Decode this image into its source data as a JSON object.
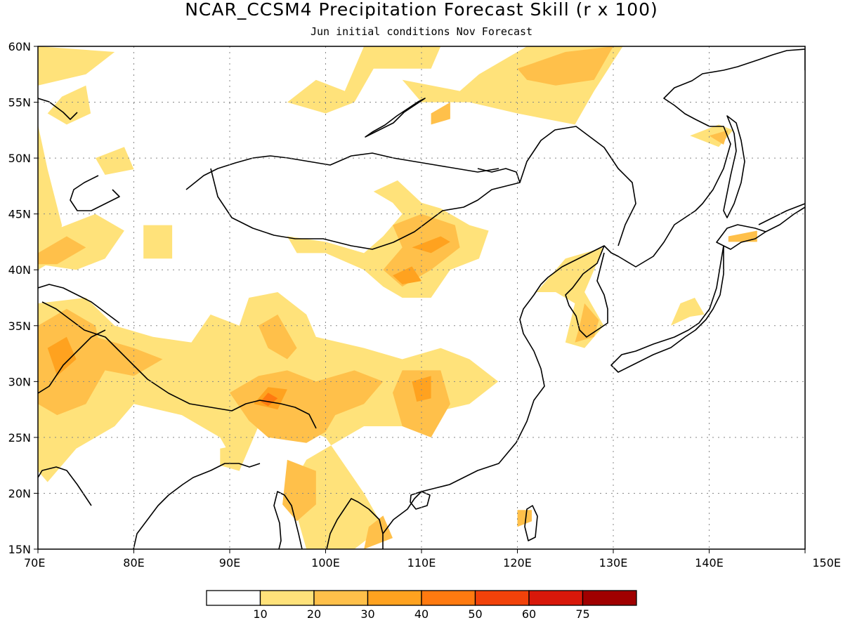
{
  "title": "NCAR_CCSM4 Precipitation Forecast Skill (r x 100)",
  "subtitle": "Jun initial conditions  Nov Forecast",
  "map": {
    "lon_range": [
      70,
      150
    ],
    "lat_range": [
      15,
      60
    ],
    "lon_ticks": [
      "70E",
      "80E",
      "90E",
      "100E",
      "110E",
      "120E",
      "130E",
      "140E",
      "150E"
    ],
    "lat_ticks": [
      "15N",
      "20N",
      "25N",
      "30N",
      "35N",
      "40N",
      "45N",
      "50N",
      "55N",
      "60N"
    ],
    "grid": "dotted",
    "coastline_color": "#000000"
  },
  "colorbar": {
    "colors": [
      "#ffffff",
      "#ffe27a",
      "#ffc04a",
      "#ffa21f",
      "#ff7a10",
      "#f2420a",
      "#d8180a",
      "#a00000"
    ],
    "labels": [
      "10",
      "20",
      "30",
      "40",
      "50",
      "60",
      "75"
    ]
  },
  "skill_regions": [
    {
      "level": 1,
      "lonlat": [
        [
          70,
          56.5
        ],
        [
          75,
          57.5
        ],
        [
          78,
          59.5
        ],
        [
          70,
          60
        ]
      ]
    },
    {
      "level": 1,
      "lonlat": [
        [
          72.5,
          55.5
        ],
        [
          75,
          56.5
        ],
        [
          75.5,
          54
        ],
        [
          73,
          53
        ],
        [
          71,
          54
        ]
      ]
    },
    {
      "level": 1,
      "lonlat": [
        [
          76,
          50
        ],
        [
          79,
          51
        ],
        [
          80,
          49
        ],
        [
          77,
          48.5
        ]
      ]
    },
    {
      "level": 1,
      "lonlat": [
        [
          70,
          53
        ],
        [
          71,
          49
        ],
        [
          72.5,
          44
        ],
        [
          72,
          41
        ],
        [
          70,
          40
        ]
      ]
    },
    {
      "level": 1,
      "lonlat": [
        [
          70,
          43
        ],
        [
          73,
          44
        ],
        [
          76,
          45
        ],
        [
          79,
          43.5
        ],
        [
          77,
          41
        ],
        [
          74,
          40
        ],
        [
          70,
          40.5
        ]
      ]
    },
    {
      "level": 2,
      "lonlat": [
        [
          70,
          41.5
        ],
        [
          73,
          43
        ],
        [
          75,
          42
        ],
        [
          72,
          40.5
        ],
        [
          70,
          40.5
        ]
      ]
    },
    {
      "level": 1,
      "lonlat": [
        [
          81,
          44
        ],
        [
          84,
          44
        ],
        [
          84,
          41
        ],
        [
          81,
          41
        ]
      ]
    },
    {
      "level": 1,
      "lonlat": [
        [
          96,
          55
        ],
        [
          99,
          57
        ],
        [
          102,
          56
        ],
        [
          104,
          60
        ],
        [
          112,
          60
        ],
        [
          111,
          58
        ],
        [
          105,
          58
        ],
        [
          103,
          55
        ],
        [
          100,
          54
        ]
      ]
    },
    {
      "level": 1,
      "lonlat": [
        [
          108,
          57
        ],
        [
          114,
          56
        ],
        [
          116,
          57.5
        ],
        [
          121,
          60
        ],
        [
          131,
          60
        ],
        [
          128,
          56
        ],
        [
          126,
          53
        ],
        [
          120,
          54
        ],
        [
          115,
          55
        ],
        [
          110,
          55
        ]
      ]
    },
    {
      "level": 2,
      "lonlat": [
        [
          120,
          58
        ],
        [
          125,
          59.5
        ],
        [
          130,
          60
        ],
        [
          128,
          57
        ],
        [
          124,
          56.5
        ],
        [
          121,
          57
        ]
      ]
    },
    {
      "level": 2,
      "lonlat": [
        [
          111,
          54
        ],
        [
          113,
          55
        ],
        [
          113,
          53.5
        ],
        [
          111,
          53
        ]
      ]
    },
    {
      "level": 1,
      "lonlat": [
        [
          138,
          52
        ],
        [
          141,
          53
        ],
        [
          142.5,
          52.5
        ],
        [
          141,
          51
        ]
      ]
    },
    {
      "level": 2,
      "lonlat": [
        [
          140,
          52
        ],
        [
          142,
          52.5
        ],
        [
          141.5,
          51.2
        ]
      ]
    },
    {
      "level": 1,
      "lonlat": [
        [
          105,
          47
        ],
        [
          107.5,
          48
        ],
        [
          110,
          46
        ],
        [
          112,
          45.5
        ],
        [
          115,
          44
        ],
        [
          117,
          43.5
        ],
        [
          116,
          41
        ],
        [
          113,
          40
        ],
        [
          111,
          37.5
        ],
        [
          108,
          37.5
        ],
        [
          106,
          38.5
        ],
        [
          104,
          40
        ],
        [
          100,
          41.5
        ],
        [
          97,
          41.5
        ],
        [
          96,
          43
        ],
        [
          100,
          42.5
        ],
        [
          104,
          41.5
        ],
        [
          106,
          43
        ],
        [
          108,
          45
        ],
        [
          107,
          46
        ]
      ]
    },
    {
      "level": 2,
      "lonlat": [
        [
          107,
          44
        ],
        [
          110,
          45
        ],
        [
          113.5,
          44
        ],
        [
          114,
          42
        ],
        [
          111,
          40
        ],
        [
          108,
          38.5
        ],
        [
          106,
          40
        ],
        [
          108,
          42
        ]
      ]
    },
    {
      "level": 3,
      "lonlat": [
        [
          109,
          42
        ],
        [
          112,
          43
        ],
        [
          113,
          42.5
        ],
        [
          111,
          41.5
        ]
      ]
    },
    {
      "level": 3,
      "lonlat": [
        [
          107,
          39.5
        ],
        [
          109,
          40.3
        ],
        [
          110,
          39
        ],
        [
          108,
          38.7
        ]
      ]
    },
    {
      "level": 1,
      "lonlat": [
        [
          122,
          38
        ],
        [
          125,
          41
        ],
        [
          129,
          42
        ],
        [
          128,
          40
        ],
        [
          127,
          38
        ],
        [
          129,
          35
        ],
        [
          127,
          33
        ],
        [
          125,
          33.5
        ],
        [
          126,
          37
        ],
        [
          124,
          38
        ]
      ]
    },
    {
      "level": 2,
      "lonlat": [
        [
          126,
          33.5
        ],
        [
          128,
          34
        ],
        [
          128.5,
          35.5
        ],
        [
          127,
          37
        ],
        [
          126.5,
          35
        ]
      ]
    },
    {
      "level": 1,
      "lonlat": [
        [
          136,
          35
        ],
        [
          138,
          35.8
        ],
        [
          139.5,
          36
        ],
        [
          138.5,
          37.5
        ],
        [
          137,
          37
        ]
      ]
    },
    {
      "level": 2,
      "lonlat": [
        [
          142,
          43
        ],
        [
          145,
          43.5
        ],
        [
          145,
          42.5
        ],
        [
          142,
          42.5
        ]
      ]
    },
    {
      "level": 1,
      "lonlat": [
        [
          70,
          37
        ],
        [
          75,
          37.5
        ],
        [
          78,
          35
        ],
        [
          82,
          34
        ],
        [
          86,
          33.5
        ],
        [
          88,
          36
        ],
        [
          91,
          35
        ],
        [
          92,
          37.5
        ],
        [
          95,
          38
        ],
        [
          98,
          36
        ],
        [
          99,
          34
        ],
        [
          104,
          33
        ],
        [
          108,
          32
        ],
        [
          112,
          33
        ],
        [
          115,
          32
        ],
        [
          118,
          30
        ],
        [
          115,
          28
        ],
        [
          110,
          27
        ],
        [
          108,
          26
        ],
        [
          104,
          26
        ],
        [
          100,
          24
        ],
        [
          98,
          23
        ],
        [
          96,
          20
        ],
        [
          97,
          18
        ],
        [
          98,
          15
        ],
        [
          103,
          15
        ],
        [
          106,
          17
        ],
        [
          104,
          20
        ],
        [
          100,
          25
        ],
        [
          97,
          26
        ],
        [
          93,
          26
        ],
        [
          91,
          22
        ],
        [
          89,
          25
        ],
        [
          85,
          27
        ],
        [
          80,
          28
        ],
        [
          78,
          26
        ],
        [
          74,
          24
        ],
        [
          71,
          21
        ],
        [
          70,
          22
        ]
      ]
    },
    {
      "level": 2,
      "lonlat": [
        [
          70,
          35
        ],
        [
          73,
          36.5
        ],
        [
          76,
          35
        ],
        [
          77,
          31
        ],
        [
          75,
          28
        ],
        [
          72,
          27
        ],
        [
          70,
          28
        ]
      ]
    },
    {
      "level": 3,
      "lonlat": [
        [
          71,
          33
        ],
        [
          73,
          34
        ],
        [
          74,
          32
        ],
        [
          72,
          30.5
        ]
      ]
    },
    {
      "level": 2,
      "lonlat": [
        [
          76,
          34
        ],
        [
          80,
          33
        ],
        [
          83,
          32
        ],
        [
          80,
          30.5
        ],
        [
          77,
          31
        ]
      ]
    },
    {
      "level": 2,
      "lonlat": [
        [
          93,
          35
        ],
        [
          95,
          36
        ],
        [
          97,
          33
        ],
        [
          96,
          32
        ],
        [
          94,
          33
        ]
      ]
    },
    {
      "level": 2,
      "lonlat": [
        [
          90,
          29
        ],
        [
          93,
          30.5
        ],
        [
          96,
          31
        ],
        [
          99,
          30
        ],
        [
          103,
          31
        ],
        [
          106,
          30
        ],
        [
          104,
          28
        ],
        [
          101,
          27
        ],
        [
          100,
          25.5
        ],
        [
          98,
          24.5
        ],
        [
          94,
          25
        ],
        [
          92,
          26.5
        ]
      ]
    },
    {
      "level": 3,
      "lonlat": [
        [
          92.5,
          28
        ],
        [
          94,
          29.5
        ],
        [
          96,
          29.3
        ],
        [
          95,
          27.5
        ]
      ]
    },
    {
      "level": 4,
      "lonlat": [
        [
          93.2,
          28.2
        ],
        [
          94,
          29
        ],
        [
          95,
          28.5
        ],
        [
          94,
          27.8
        ]
      ]
    },
    {
      "level": 2,
      "lonlat": [
        [
          96,
          23
        ],
        [
          99,
          22
        ],
        [
          99,
          19
        ],
        [
          97,
          17.5
        ],
        [
          95.5,
          19
        ]
      ]
    },
    {
      "level": 2,
      "lonlat": [
        [
          104,
          15
        ],
        [
          107,
          16
        ],
        [
          106,
          18
        ],
        [
          104.5,
          17
        ]
      ]
    },
    {
      "level": 2,
      "lonlat": [
        [
          108,
          31
        ],
        [
          112,
          31
        ],
        [
          113,
          28
        ],
        [
          111,
          25
        ],
        [
          108,
          26
        ],
        [
          107,
          29
        ]
      ]
    },
    {
      "level": 3,
      "lonlat": [
        [
          109,
          30
        ],
        [
          111,
          30.5
        ],
        [
          111,
          28.5
        ],
        [
          109.5,
          28.2
        ]
      ]
    },
    {
      "level": 2,
      "lonlat": [
        [
          120,
          17
        ],
        [
          121.5,
          17.5
        ],
        [
          121.5,
          18.5
        ],
        [
          120,
          18.5
        ]
      ]
    },
    {
      "level": 1,
      "lonlat": [
        [
          89,
          24
        ],
        [
          92,
          24.5
        ],
        [
          91,
          22
        ],
        [
          89,
          22.5
        ]
      ]
    }
  ]
}
